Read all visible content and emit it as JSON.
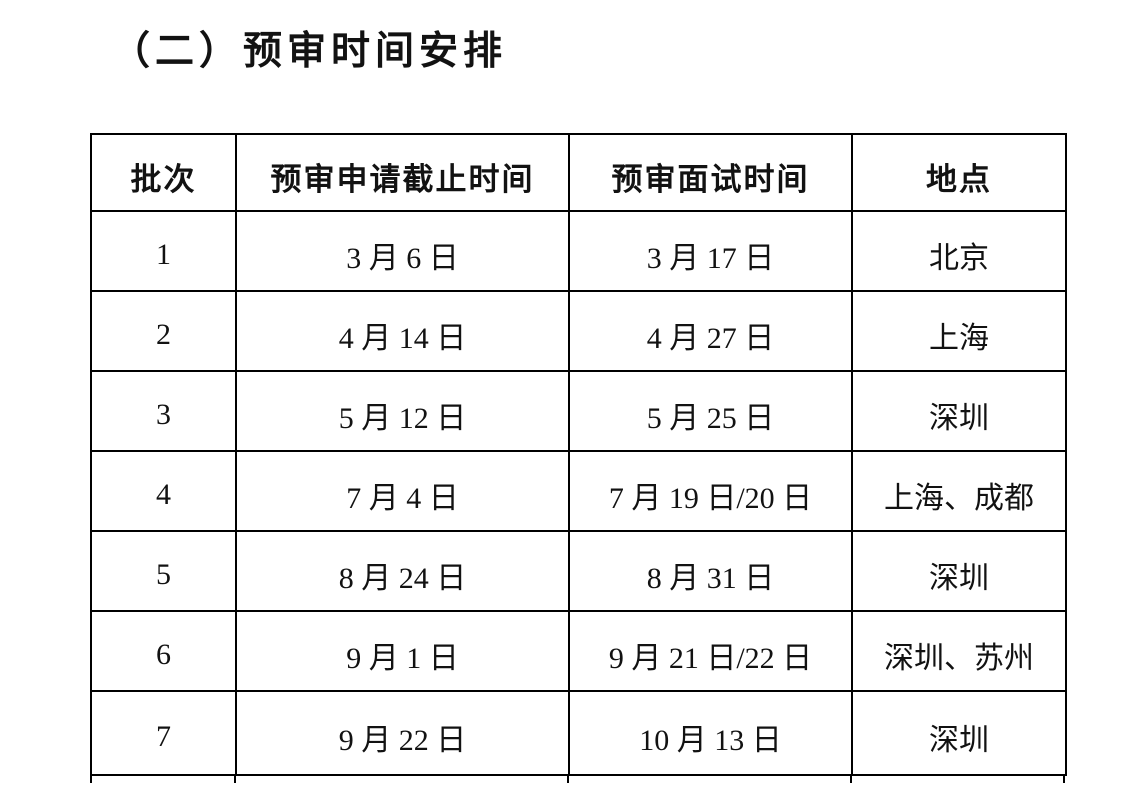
{
  "page": {
    "heading": "（二）预审时间安排",
    "background_color": "#ffffff",
    "text_color": "#121212"
  },
  "table": {
    "border_color": "#000000",
    "headers": [
      "批次",
      "预审申请截止时间",
      "预审面试时间",
      "地点"
    ],
    "rows": [
      {
        "batch": "1",
        "deadline": "3 月 6 日",
        "interview": "3 月 17 日",
        "location": "北京"
      },
      {
        "batch": "2",
        "deadline": "4 月 14 日",
        "interview": "4 月 27 日",
        "location": "上海"
      },
      {
        "batch": "3",
        "deadline": "5 月 12 日",
        "interview": "5 月 25 日",
        "location": "深圳"
      },
      {
        "batch": "4",
        "deadline": "7 月 4 日",
        "interview": "7 月 19 日/20 日",
        "location": "上海、成都"
      },
      {
        "batch": "5",
        "deadline": "8 月 24 日",
        "interview": "8 月 31 日",
        "location": "深圳"
      },
      {
        "batch": "6",
        "deadline": "9 月 1 日",
        "interview": "9 月 21 日/22 日",
        "location": "深圳、苏州"
      },
      {
        "batch": "7",
        "deadline": "9 月 22 日",
        "interview": "10 月 13 日",
        "location": "深圳"
      }
    ]
  }
}
